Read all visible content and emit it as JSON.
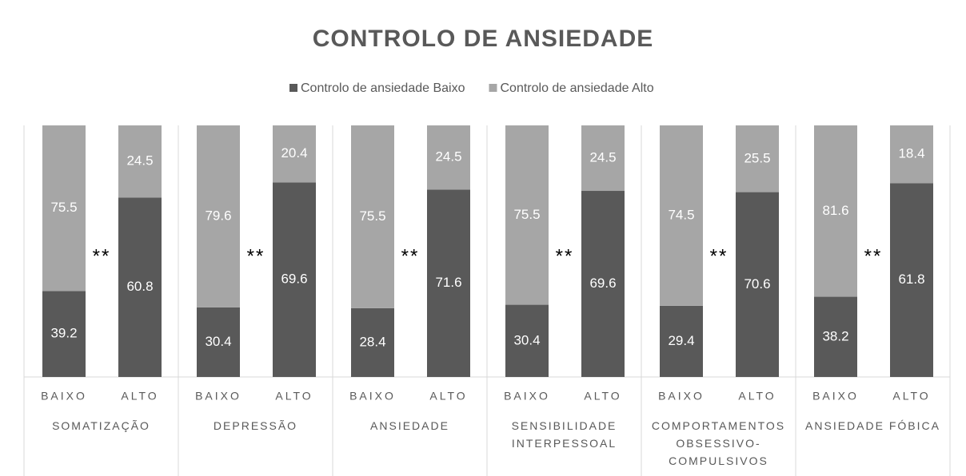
{
  "chart_data": {
    "type": "bar",
    "stacking": "percent",
    "title": "CONTROLO  DE  ANSIEDADE",
    "categories": [
      "BAIXO",
      "ALTO",
      "BAIXO",
      "ALTO",
      "BAIXO",
      "ALTO",
      "BAIXO",
      "ALTO",
      "BAIXO",
      "ALTO",
      "BAIXO",
      "ALTO"
    ],
    "groups": [
      "SOMATIZAÇÃO",
      "DEPRESSÃO",
      "ANSIEDADE",
      "SENSIBILIDADE INTERPESSOAL",
      "COMPORTAMENTOS OBSESSIVO-COMPULSIVOS",
      "ANSIEDADE FÓBICA"
    ],
    "series": [
      {
        "name": "Controlo de ansiedade Baixo",
        "color": "#595959",
        "values": [
          39.2,
          60.8,
          30.4,
          69.6,
          28.4,
          71.6,
          30.4,
          69.6,
          29.4,
          70.6,
          38.2,
          61.8
        ]
      },
      {
        "name": "Controlo de ansiedade Alto",
        "color": "#a6a6a6",
        "values": [
          75.5,
          24.5,
          79.6,
          20.4,
          75.5,
          24.5,
          75.5,
          24.5,
          74.5,
          25.5,
          81.6,
          18.4
        ]
      }
    ],
    "annotations": [
      "**",
      "**",
      "**",
      "**",
      "**",
      "**"
    ],
    "legend": "top"
  }
}
